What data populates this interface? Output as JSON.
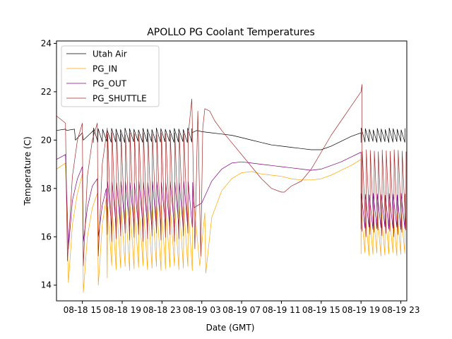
{
  "chart_data": {
    "type": "line",
    "title": "APOLLO PG Coolant Temperatures",
    "xlabel": "Date (GMT)",
    "ylabel": "Temperature (C)",
    "x_unit": "hours since 08-18 00:00",
    "xlim": [
      12.4,
      47.6
    ],
    "ylim": [
      13.35,
      24.1
    ],
    "grid": false,
    "legend_placement": "top-left",
    "xticks": [
      {
        "value": 15,
        "label": "08-18 15"
      },
      {
        "value": 19,
        "label": "08-18 19"
      },
      {
        "value": 23,
        "label": "08-18 23"
      },
      {
        "value": 27,
        "label": "08-19 03"
      },
      {
        "value": 31,
        "label": "08-19 07"
      },
      {
        "value": 35,
        "label": "08-19 11"
      },
      {
        "value": 39,
        "label": "08-19 15"
      },
      {
        "value": 43,
        "label": "08-19 19"
      },
      {
        "value": 47,
        "label": "08-19 23"
      }
    ],
    "yticks": [
      {
        "value": 14,
        "label": "14"
      },
      {
        "value": 16,
        "label": "16"
      },
      {
        "value": 18,
        "label": "18"
      },
      {
        "value": 20,
        "label": "20"
      },
      {
        "value": 22,
        "label": "22"
      },
      {
        "value": 24,
        "label": "24"
      }
    ],
    "series": [
      {
        "name": "Utah Air",
        "color": "#000000",
        "segments": [
          {
            "type": "points",
            "x": [
              12.4,
              13.3,
              13.4,
              14.2,
              14.3,
              15.0,
              15.1,
              16.0,
              16.1
            ],
            "y": [
              20.4,
              20.45,
              20.4,
              20.45,
              20.0,
              20.3,
              20.0,
              20.35,
              20.4
            ]
          },
          {
            "type": "oscillation",
            "x_start": 16.1,
            "x_end": 26.0,
            "period": 0.45,
            "high": 20.5,
            "low": 19.9
          },
          {
            "type": "points",
            "x": [
              26.0,
              26.5,
              27.0,
              28.0,
              29.0,
              30.0,
              31.0,
              32.0,
              33.0,
              34.0,
              35.0,
              36.0,
              37.0,
              38.0,
              39.0,
              40.0,
              41.0,
              42.0,
              43.0
            ],
            "y": [
              20.3,
              20.4,
              20.35,
              20.3,
              20.25,
              20.2,
              20.1,
              20.0,
              19.9,
              19.8,
              19.75,
              19.7,
              19.65,
              19.6,
              19.6,
              19.75,
              19.95,
              20.15,
              20.3
            ]
          },
          {
            "type": "oscillation",
            "x_start": 43.0,
            "x_end": 47.6,
            "period": 0.4,
            "high": 20.5,
            "low": 19.9
          }
        ]
      },
      {
        "name": "PG_IN",
        "color": "#ffa500",
        "segments": [
          {
            "type": "points",
            "x": [
              12.4,
              13.3,
              13.6,
              14.0,
              14.5,
              15.0,
              15.1,
              15.5,
              16.0,
              16.5,
              16.6,
              17.0,
              17.4,
              17.5
            ],
            "y": [
              18.8,
              19.05,
              14.1,
              16.5,
              17.8,
              18.6,
              13.7,
              16.0,
              17.2,
              17.8,
              14.0,
              16.5,
              17.6,
              14.3
            ]
          },
          {
            "type": "oscillation",
            "x_start": 17.5,
            "x_end": 26.2,
            "period": 0.45,
            "high": 17.3,
            "low": 14.6
          },
          {
            "type": "points",
            "x": [
              26.2,
              26.8,
              27.3,
              27.4,
              28.0,
              29.0,
              30.0,
              31.0,
              32.0,
              33.0,
              34.0,
              35.0,
              36.0,
              37.0,
              38.0,
              39.0,
              40.0,
              41.0,
              42.0,
              43.0
            ],
            "y": [
              17.5,
              14.8,
              17.0,
              14.5,
              16.8,
              17.9,
              18.4,
              18.65,
              18.7,
              18.6,
              18.55,
              18.5,
              18.4,
              18.35,
              18.35,
              18.4,
              18.55,
              18.75,
              18.95,
              19.2
            ]
          },
          {
            "type": "oscillation",
            "x_start": 43.0,
            "x_end": 47.6,
            "period": 0.4,
            "high": 17.0,
            "low": 15.2
          }
        ]
      },
      {
        "name": "PG_OUT",
        "color": "#800080",
        "segments": [
          {
            "type": "points",
            "x": [
              12.4,
              13.3,
              13.6,
              14.0,
              14.5,
              15.0,
              15.1,
              15.5,
              16.0,
              16.5,
              16.6,
              17.0,
              17.4,
              17.5
            ],
            "y": [
              19.2,
              19.4,
              15.5,
              17.5,
              18.4,
              18.9,
              15.8,
              17.2,
              18.1,
              18.4,
              16.0,
              17.3,
              18.0,
              16.2
            ]
          },
          {
            "type": "oscillation",
            "x_start": 17.5,
            "x_end": 26.2,
            "period": 0.45,
            "high": 18.3,
            "low": 16.3
          },
          {
            "type": "points",
            "x": [
              26.2,
              27.0,
              28.0,
              29.0,
              30.0,
              31.0,
              32.0,
              33.0,
              34.0,
              35.0,
              36.0,
              37.0,
              38.0,
              39.0,
              40.0,
              41.0,
              42.0,
              43.0
            ],
            "y": [
              17.2,
              17.4,
              18.3,
              18.8,
              19.05,
              19.1,
              19.05,
              19.0,
              18.95,
              18.9,
              18.85,
              18.8,
              18.75,
              18.8,
              18.95,
              19.1,
              19.3,
              19.5
            ]
          },
          {
            "type": "oscillation",
            "x_start": 43.0,
            "x_end": 47.6,
            "period": 0.4,
            "high": 17.8,
            "low": 16.3
          }
        ]
      },
      {
        "name": "PG_SHUTTLE",
        "color": "#a52a2a",
        "segments": [
          {
            "type": "points",
            "x": [
              12.4,
              13.3,
              13.5,
              14.0,
              14.5,
              15.0,
              15.1,
              15.5,
              16.0,
              16.5,
              16.6,
              17.0,
              17.5
            ],
            "y": [
              21.0,
              20.7,
              15.0,
              18.5,
              20.0,
              20.7,
              14.8,
              18.5,
              20.0,
              20.7,
              15.2,
              19.0,
              20.5
            ]
          },
          {
            "type": "oscillation",
            "x_start": 17.5,
            "x_end": 26.0,
            "period": 0.45,
            "high": 20.3,
            "low": 15.8
          },
          {
            "type": "points",
            "x": [
              26.0,
              26.3,
              26.6,
              26.9,
              27.1,
              27.3,
              27.8,
              28.3,
              29.0,
              30.0,
              31.0,
              32.0,
              33.0,
              34.0,
              35.0,
              35.3,
              36.0,
              37.0,
              38.0,
              39.0,
              40.0,
              41.0,
              42.0,
              43.0,
              43.1
            ],
            "y": [
              21.7,
              15.5,
              21.2,
              15.2,
              20.5,
              21.3,
              21.2,
              20.8,
              20.4,
              19.9,
              19.4,
              18.9,
              18.4,
              18.0,
              17.85,
              17.85,
              18.1,
              18.3,
              18.8,
              19.5,
              20.2,
              20.8,
              21.4,
              22.0,
              22.3
            ]
          },
          {
            "type": "oscillation",
            "x_start": 43.1,
            "x_end": 47.6,
            "period": 0.4,
            "high": 19.6,
            "low": 16.0
          }
        ]
      }
    ]
  }
}
